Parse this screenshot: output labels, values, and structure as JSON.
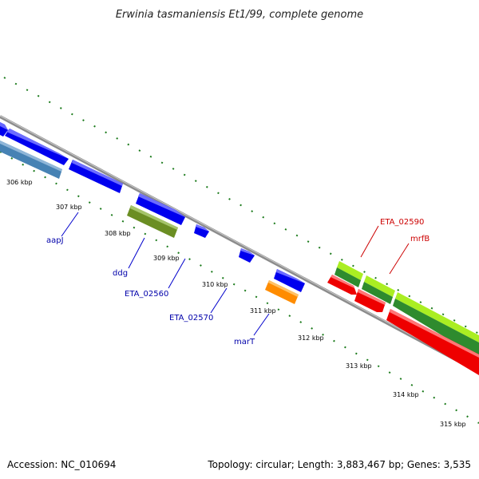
{
  "title": "Erwinia tasmaniensis Et1/99, complete genome",
  "footer": {
    "accession": "Accession: NC_010694",
    "summary": "Topology: circular; Length: 3,883,467 bp; Genes: 3,535"
  },
  "ticks": [
    "306 kbp",
    "307 kbp",
    "308 kbp",
    "309 kbp",
    "310 kbp",
    "311 kbp",
    "312 kbp",
    "313 kbp",
    "314 kbp",
    "315 kbp"
  ],
  "gene_labels": [
    {
      "text": "aapJ",
      "color": "#0000aa"
    },
    {
      "text": "ddg",
      "color": "#0000aa"
    },
    {
      "text": "ETA_02560",
      "color": "#0000aa"
    },
    {
      "text": "ETA_02570",
      "color": "#0000aa"
    },
    {
      "text": "marT",
      "color": "#0000aa"
    },
    {
      "text": "ETA_02590",
      "color": "#cc0000"
    },
    {
      "text": "mrfB",
      "color": "#cc0000"
    }
  ],
  "colors": {
    "backbone": "#8c8c8c",
    "cds_forward": "#0000ee",
    "cds_steel": "#4682b4",
    "cds_olive": "#6b8e23",
    "cds_orange": "#ff8c00",
    "cds_reverse": "#ee0000",
    "cds_green": "#2e8b2e",
    "cds_lime": "#aaee22",
    "dots": "#1a7a1a"
  }
}
